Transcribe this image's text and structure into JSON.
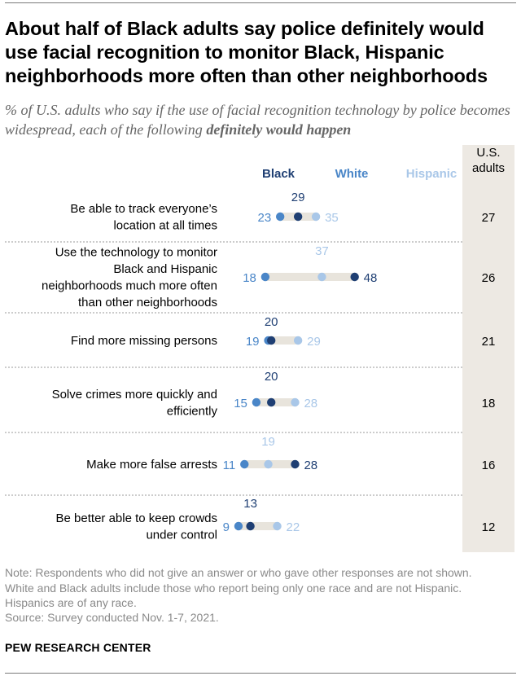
{
  "title": "About half of Black adults say police definitely would use facial recognition to monitor Black, Hispanic neighborhoods more often than other neighborhoods",
  "subtitle_prefix": "% of U.S. adults who say if the use of facial recognition technology by police becomes widespread, each of the following",
  "subtitle_bold": "definitely would happen",
  "colors": {
    "black": "#1f3f73",
    "white": "#4a86c8",
    "hispanic": "#a9c7e8",
    "range": "#e8e4dc",
    "column_bg": "#ede9e3"
  },
  "chart_data": {
    "type": "dot",
    "series": [
      {
        "name": "Black",
        "key": "black"
      },
      {
        "name": "White",
        "key": "white"
      },
      {
        "name": "Hispanic",
        "key": "hispanic"
      }
    ],
    "total_header": [
      "U.S.",
      "adults"
    ],
    "rows": [
      {
        "label": [
          "Be able to track everyone’s",
          "location at all times"
        ],
        "black": 29,
        "white": 23,
        "hispanic": 35,
        "total": 27
      },
      {
        "label": [
          "Use the technology to monitor",
          "Black and Hispanic",
          "neighborhoods much more often",
          "than other neighborhoods"
        ],
        "black": 48,
        "white": 18,
        "hispanic": 37,
        "total": 26
      },
      {
        "label": [
          "Find more missing persons"
        ],
        "black": 20,
        "white": 19,
        "hispanic": 29,
        "total": 21
      },
      {
        "label": [
          "Solve crimes more quickly and",
          "efficiently"
        ],
        "black": 20,
        "white": 15,
        "hispanic": 28,
        "total": 18
      },
      {
        "label": [
          "Make more false arrests"
        ],
        "black": 28,
        "white": 11,
        "hispanic": 19,
        "total": 16
      },
      {
        "label": [
          "Be better able to keep crowds",
          "under control"
        ],
        "black": 13,
        "white": 9,
        "hispanic": 22,
        "total": 12
      }
    ]
  },
  "note_lines": [
    "Note: Respondents who did not give an answer or who gave other responses are not shown.",
    "White and Black adults include those who report being only one race and are not Hispanic.",
    "Hispanics are of any race."
  ],
  "source": "Source: Survey conducted Nov. 1-7, 2021.",
  "brand": "PEW RESEARCH CENTER"
}
